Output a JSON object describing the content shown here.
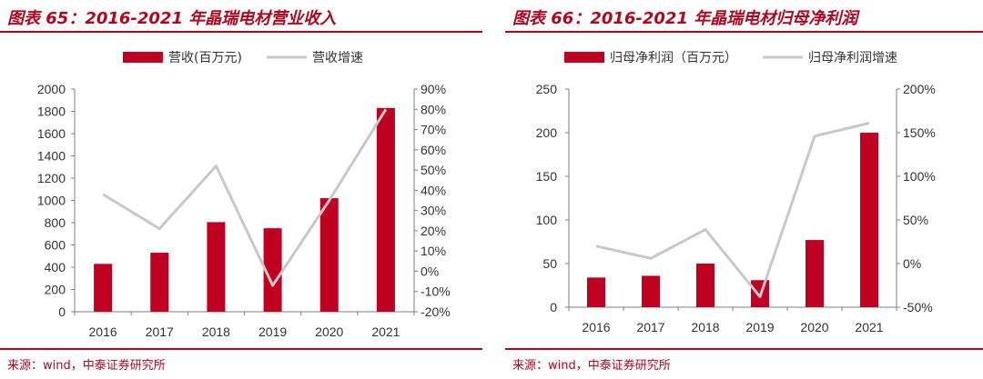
{
  "chart_data": [
    {
      "type": "bar",
      "title": "图表 65：2016-2021 年晶瑞电材营业收入",
      "categories": [
        "2016",
        "2017",
        "2018",
        "2019",
        "2020",
        "2021"
      ],
      "series": [
        {
          "name": "营收(百万元)",
          "kind": "bar",
          "axis": "left",
          "color": "#c00021",
          "values": [
            430,
            530,
            805,
            750,
            1020,
            1830
          ]
        },
        {
          "name": "营收增速",
          "kind": "line",
          "axis": "right",
          "color": "#c8c8c8",
          "values": [
            38,
            21,
            52,
            -7,
            35,
            80
          ]
        }
      ],
      "y_left": {
        "min": 0,
        "max": 2000,
        "step": 200,
        "ticks": [
          "0",
          "200",
          "400",
          "600",
          "800",
          "1000",
          "1200",
          "1400",
          "1600",
          "1800",
          "2000"
        ]
      },
      "y_right": {
        "min": -20,
        "max": 90,
        "step": 10,
        "ticks": [
          "-20%",
          "-10%",
          "0%",
          "10%",
          "20%",
          "30%",
          "40%",
          "50%",
          "60%",
          "70%",
          "80%",
          "90%"
        ]
      },
      "source": "来源：wind，中泰证券研究所"
    },
    {
      "type": "bar",
      "title": "图表 66：2016-2021 年晶瑞电材归母净利润",
      "categories": [
        "2016",
        "2017",
        "2018",
        "2019",
        "2020",
        "2021"
      ],
      "series": [
        {
          "name": "归母净利润（百万元）",
          "kind": "bar",
          "axis": "left",
          "color": "#c00021",
          "values": [
            34,
            36,
            50,
            31,
            77,
            200
          ]
        },
        {
          "name": "归母净利润增速",
          "kind": "line",
          "axis": "right",
          "color": "#c8c8c8",
          "values": [
            20,
            6,
            39,
            -38,
            146,
            161
          ]
        }
      ],
      "y_left": {
        "min": 0,
        "max": 250,
        "step": 50,
        "ticks": [
          "0",
          "50",
          "100",
          "150",
          "200",
          "250"
        ]
      },
      "y_right": {
        "min": -50,
        "max": 200,
        "step": 50,
        "ticks": [
          "-50%",
          "0%",
          "50%",
          "100%",
          "150%",
          "200%"
        ]
      },
      "source": "来源：wind，中泰证券研究所"
    }
  ]
}
